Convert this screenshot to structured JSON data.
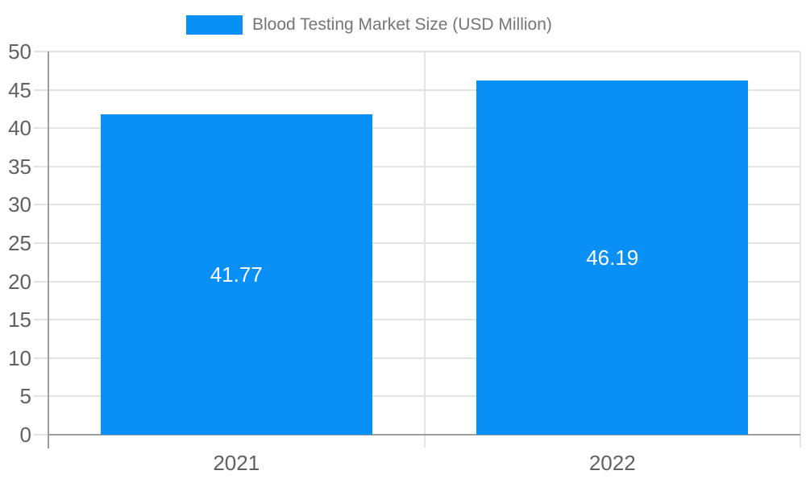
{
  "chart_data": {
    "type": "bar",
    "title": "",
    "series_name": "Blood Testing Market Size (USD Million)",
    "categories": [
      "2021",
      "2022"
    ],
    "values": [
      41.77,
      46.19
    ],
    "value_labels": [
      "41.77",
      "46.19"
    ],
    "xlabel": "",
    "ylabel": "",
    "ylim": [
      0,
      50
    ],
    "ytick_step": 5,
    "yticks": [
      0,
      5,
      10,
      15,
      20,
      25,
      30,
      35,
      40,
      45,
      50
    ],
    "grid": true,
    "legend_position": "top-center",
    "style": {
      "bar_color": "#0990f6",
      "value_label_color": "#ffffff",
      "axis_line_color": "#9e9e9e",
      "grid_line_color": "#e3e3e3",
      "ytick_label_color": "#616161",
      "xtick_label_color": "#616161",
      "legend_text_color": "#757575",
      "background_color": "#ffffff"
    }
  }
}
